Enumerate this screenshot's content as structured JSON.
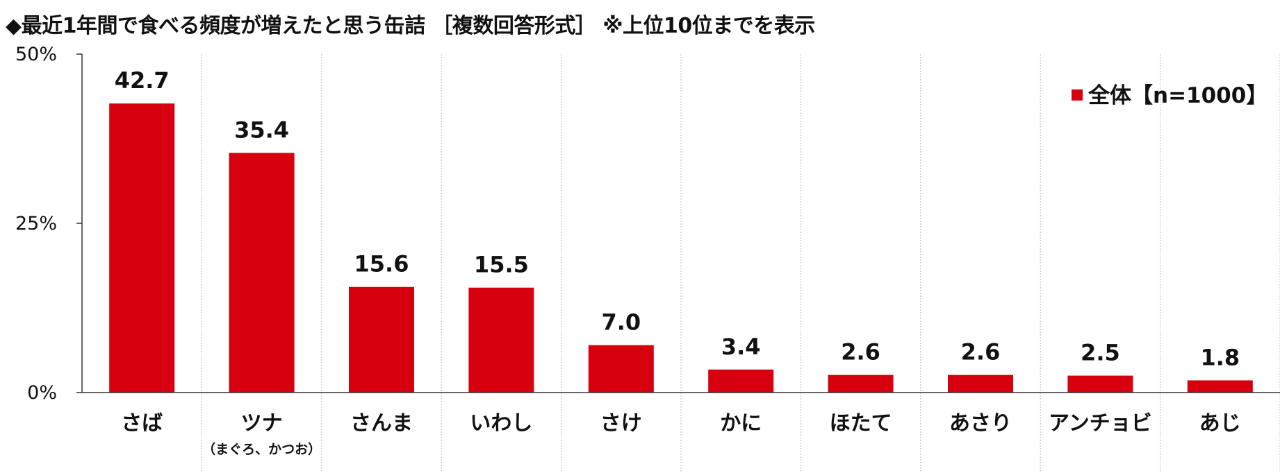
{
  "chart_data": {
    "type": "bar",
    "title": "◆最近1年間で食べる頻度が増えたと思う缶詰 ［複数回答形式］ ※上位10位までを表示",
    "categories": [
      "さば",
      "ツナ",
      "さんま",
      "いわし",
      "さけ",
      "かに",
      "ほたて",
      "あさり",
      "アンチョビ",
      "あじ"
    ],
    "category_notes": [
      "",
      "（まぐろ、かつお）",
      "",
      "",
      "",
      "",
      "",
      "",
      "",
      ""
    ],
    "series": [
      {
        "name": "全体【n=1000】",
        "values": [
          42.7,
          35.4,
          15.6,
          15.5,
          7.0,
          3.4,
          2.6,
          2.6,
          2.5,
          1.8
        ],
        "color": "#d7000f"
      }
    ],
    "value_labels": [
      "42.7",
      "35.4",
      "15.6",
      "15.5",
      "7.0",
      "3.4",
      "2.6",
      "2.6",
      "2.5",
      "1.8"
    ],
    "yticks": [
      0,
      25,
      50
    ],
    "ytick_labels": [
      "0%",
      "25%",
      "50%"
    ],
    "ylim": [
      0,
      50
    ],
    "xlabel": "",
    "ylabel": "",
    "grid": "vertical-dotted",
    "legend": "top-right"
  }
}
